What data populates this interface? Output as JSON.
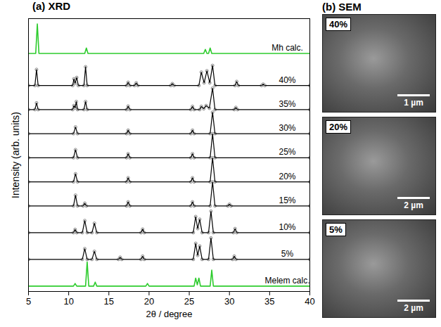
{
  "chart_data": {
    "type": "line",
    "title": "(a) XRD",
    "x_label": "2θ / degree",
    "y_label": "Intensity (arb. units)",
    "xlim": [
      5,
      40
    ],
    "xticks": [
      5,
      10,
      15,
      20,
      25,
      30,
      35,
      40
    ],
    "ylim": [
      0,
      102
    ],
    "tick_labels": "x",
    "grid": false,
    "series": [
      {
        "name": "Mh calc.",
        "color": "#2ecc2e",
        "marker": "none",
        "x": [
          5,
          5.9,
          6.1,
          6.3,
          12.0,
          12.2,
          12.4,
          26.8,
          27.0,
          27.2,
          27.4,
          27.6,
          27.8,
          40
        ],
        "values": [
          89,
          89,
          100,
          89,
          89,
          91,
          89,
          89,
          90.5,
          89,
          89,
          91,
          89,
          89
        ]
      },
      {
        "name": "40%",
        "color": "#000000",
        "marker": "circle",
        "x": [
          5,
          5.8,
          6.0,
          6.2,
          10.5,
          10.65,
          10.8,
          11.0,
          11.2,
          11.9,
          12.1,
          12.3,
          17.2,
          17.4,
          17.6,
          18.2,
          18.4,
          18.6,
          22.7,
          22.9,
          23.1,
          26.2,
          26.5,
          26.85,
          27.2,
          27.55,
          27.9,
          28.2,
          30.7,
          30.9,
          31.1,
          34.0,
          34.2,
          34.4,
          40
        ],
        "values": [
          77,
          77,
          83,
          77,
          77,
          79.5,
          77.8,
          80,
          77,
          77,
          84,
          77,
          77,
          78.2,
          77,
          77,
          78,
          77,
          77,
          77.7,
          77,
          77,
          82,
          78,
          82.5,
          78,
          84.5,
          77,
          77,
          78.5,
          77,
          77,
          77.5,
          77,
          77
        ]
      },
      {
        "name": "35%",
        "color": "#000000",
        "marker": "circle",
        "x": [
          5,
          5.8,
          6.0,
          6.2,
          10.5,
          10.65,
          10.8,
          10.95,
          11.1,
          11.9,
          12.1,
          12.3,
          17.2,
          17.4,
          17.6,
          25.2,
          25.4,
          25.6,
          26.3,
          26.5,
          26.8,
          27.1,
          27.5,
          27.9,
          28.2,
          30.6,
          30.8,
          31.0,
          40
        ],
        "values": [
          68,
          68,
          70.5,
          68,
          68,
          69.5,
          68.6,
          71,
          68,
          68,
          71,
          68,
          68,
          69.3,
          68,
          68,
          69.2,
          68,
          68,
          69.2,
          68.3,
          69.5,
          68.5,
          76,
          68,
          68,
          68.8,
          68,
          68
        ]
      },
      {
        "name": "30%",
        "color": "#000000",
        "marker": "circle",
        "x": [
          5,
          10.6,
          10.85,
          11.1,
          17.2,
          17.4,
          17.6,
          25.2,
          25.4,
          25.6,
          27.6,
          27.9,
          28.2,
          40
        ],
        "values": [
          59,
          59,
          61.5,
          59,
          59,
          60.3,
          59,
          59,
          60.3,
          59,
          59,
          67,
          59,
          59
        ]
      },
      {
        "name": "25%",
        "color": "#000000",
        "marker": "circle",
        "x": [
          5,
          10.6,
          10.85,
          11.1,
          17.2,
          17.4,
          17.6,
          25.2,
          25.4,
          25.6,
          27.6,
          27.9,
          28.2,
          40
        ],
        "values": [
          50,
          50,
          53,
          50,
          50,
          51.5,
          50,
          50,
          51.5,
          50,
          50,
          59,
          50,
          50
        ]
      },
      {
        "name": "20%",
        "color": "#000000",
        "marker": "circle",
        "x": [
          5,
          10.6,
          10.85,
          11.1,
          17.2,
          17.4,
          17.6,
          25.2,
          25.4,
          25.6,
          27.6,
          27.9,
          28.2,
          40
        ],
        "values": [
          41,
          41,
          44,
          41,
          41,
          42.5,
          41,
          41,
          42.5,
          41,
          41,
          50,
          41,
          41
        ]
      },
      {
        "name": "15%",
        "color": "#000000",
        "marker": "circle",
        "x": [
          5,
          10.6,
          10.85,
          11.1,
          11.8,
          12.0,
          12.2,
          17.2,
          17.4,
          17.6,
          25.2,
          25.4,
          25.6,
          27.6,
          27.9,
          28.2,
          29.8,
          30.0,
          30.2,
          40
        ],
        "values": [
          32,
          32,
          36,
          32,
          32,
          33,
          32,
          32,
          33.5,
          32,
          32,
          33.5,
          32,
          32,
          41,
          32,
          32,
          32.6,
          32,
          32
        ]
      },
      {
        "name": "10%",
        "color": "#000000",
        "marker": "circle",
        "x": [
          5,
          10.6,
          10.8,
          11.0,
          11.7,
          12.0,
          12.3,
          12.9,
          13.2,
          13.5,
          19.0,
          19.2,
          19.4,
          25.5,
          25.8,
          26.05,
          26.3,
          26.6,
          27.4,
          27.7,
          28.0,
          30.5,
          30.7,
          30.9,
          40
        ],
        "values": [
          22,
          22,
          23.2,
          22,
          22,
          26.5,
          22,
          22,
          25.5,
          22,
          22,
          23.3,
          22,
          22,
          28,
          23.5,
          27,
          22,
          22,
          30,
          22,
          22,
          23.5,
          22,
          22
        ]
      },
      {
        "name": "5%",
        "color": "#000000",
        "marker": "circle",
        "x": [
          5,
          11.7,
          12.0,
          12.3,
          12.9,
          13.2,
          13.5,
          16.2,
          16.4,
          16.6,
          19.0,
          19.2,
          19.4,
          25.5,
          25.8,
          26.05,
          26.3,
          26.6,
          27.4,
          27.7,
          28.0,
          30.4,
          30.6,
          30.8,
          40
        ],
        "values": [
          12,
          12,
          16,
          12,
          12,
          15,
          12,
          12,
          12.8,
          12,
          12,
          13.2,
          12,
          12,
          18,
          13.5,
          17,
          12,
          12,
          20,
          12,
          12,
          13.2,
          12,
          12
        ]
      },
      {
        "name": "Melem calc.",
        "color": "#2ecc2e",
        "marker": "none",
        "x": [
          5,
          10.6,
          10.8,
          11.0,
          12.1,
          12.3,
          12.5,
          13.1,
          13.3,
          13.5,
          19.6,
          19.8,
          20.0,
          25.6,
          25.8,
          26.0,
          26.2,
          26.4,
          27.6,
          27.8,
          28.0,
          40
        ],
        "values": [
          2,
          2,
          3,
          2,
          2,
          11,
          2,
          2,
          3.5,
          2,
          2,
          3,
          2,
          2,
          5,
          2.5,
          5,
          2,
          2,
          8,
          2,
          2
        ]
      }
    ]
  },
  "sem_panel": {
    "title": "(b) SEM",
    "images": [
      {
        "label": "40%",
        "scale_bar": "1 µm"
      },
      {
        "label": "20%",
        "scale_bar": "2 µm"
      },
      {
        "label": "5%",
        "scale_bar": "2 µm"
      }
    ]
  }
}
